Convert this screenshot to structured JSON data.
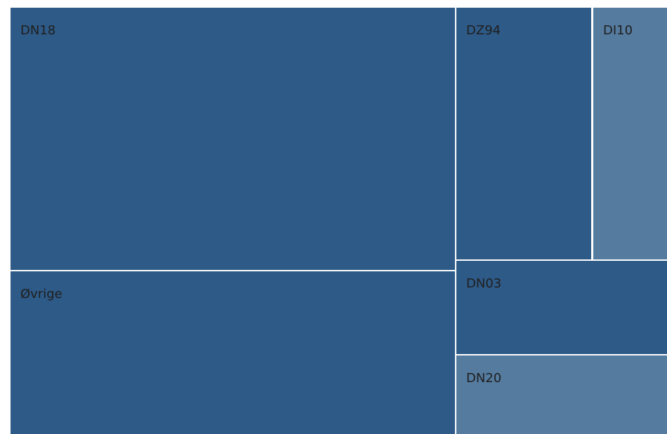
{
  "chart_data": {
    "type": "treemap",
    "title": "",
    "tiles": [
      {
        "label": "DN18",
        "color": "#2e5a87"
      },
      {
        "label": "Øvrige",
        "color": "#2e5a87"
      },
      {
        "label": "DZ94",
        "color": "#2e5a87"
      },
      {
        "label": "DI10",
        "color": "#557b9f"
      },
      {
        "label": "DN03",
        "color": "#2e5a87"
      },
      {
        "label": "DN20",
        "color": "#557b9f"
      }
    ]
  }
}
